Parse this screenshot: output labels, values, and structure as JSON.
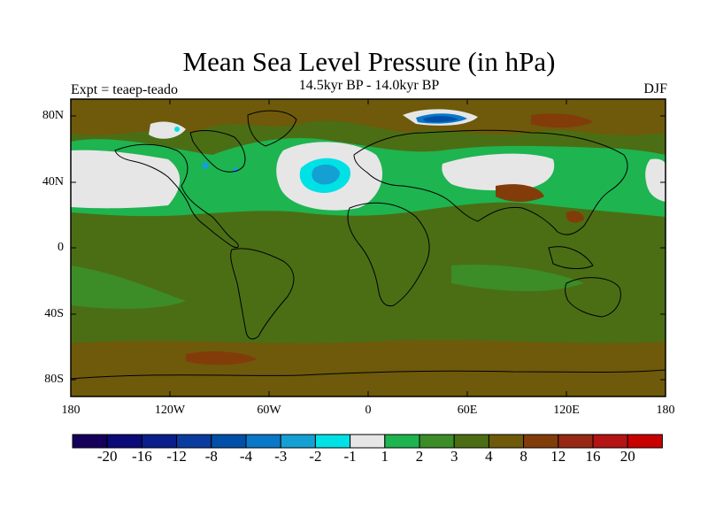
{
  "title": "Mean Sea Level Pressure (in hPa)",
  "subtitle": "14.5kyr BP - 14.0kyr BP",
  "experiment": "Expt = teaep-teado",
  "season": "DJF",
  "lat_labels": [
    "80N",
    "40N",
    "0",
    "40S",
    "80S"
  ],
  "lon_labels": [
    "180",
    "120W",
    "60W",
    "0",
    "60E",
    "120E",
    "180"
  ],
  "colorbar": {
    "labels": [
      "-20",
      "-16",
      "-12",
      "-8",
      "-4",
      "-3",
      "-2",
      "-1",
      "1",
      "2",
      "3",
      "4",
      "8",
      "12",
      "16",
      "20"
    ],
    "colors": [
      "#14005a",
      "#0a0a78",
      "#0a1e8c",
      "#0a3ca0",
      "#0050aa",
      "#0a78c8",
      "#14a0d2",
      "#00e1e6",
      "#e6e6e6",
      "#1eb450",
      "#3c8c28",
      "#4b6e14",
      "#6e5a0a",
      "#823c0a",
      "#962814",
      "#b41414",
      "#c80000"
    ]
  },
  "palette": {
    "dark_green": "#4b6e14",
    "mid_green": "#3c8c28",
    "bright_green": "#1eb450",
    "olive_brown": "#6e5a0a",
    "rust": "#823c0a",
    "grey": "#e6e6e6",
    "cyan": "#00e1e6",
    "light_blue": "#14a0d2",
    "blue": "#0a78c8",
    "navy": "#0050aa"
  }
}
